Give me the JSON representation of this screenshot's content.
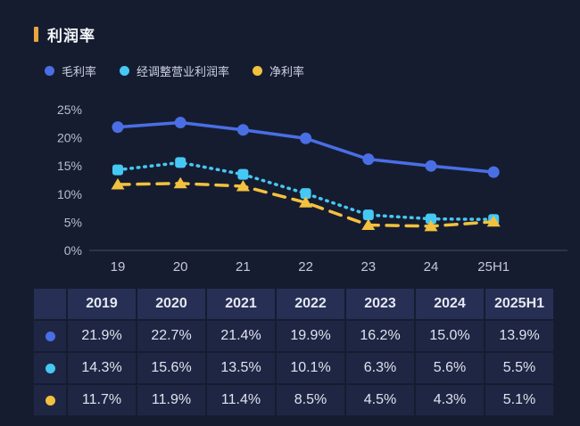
{
  "title": {
    "text": "利润率"
  },
  "colors": {
    "background": "#161C30",
    "accent_bar": "#E9A53E",
    "axis_label": "#B7BECF",
    "axis_line": "#333B52",
    "table_cell_bg": "#1F2644",
    "table_header_bg": "#272F54"
  },
  "legend": [
    {
      "label": "毛利率",
      "color": "#4A6FE4"
    },
    {
      "label": "经调整营业利润率",
      "color": "#45C8F3"
    },
    {
      "label": "净利率",
      "color": "#F2C13E"
    }
  ],
  "chart_data": {
    "type": "line",
    "title": "利润率",
    "xlabel": "",
    "ylabel": "",
    "categories": [
      "19",
      "20",
      "21",
      "22",
      "23",
      "24",
      "25H1"
    ],
    "series": [
      {
        "name": "毛利率",
        "color": "#4A6FE4",
        "line_style": "solid",
        "marker": "circle",
        "values": [
          21.9,
          22.7,
          21.4,
          19.9,
          16.2,
          15.0,
          13.9
        ]
      },
      {
        "name": "经调整营业利润率",
        "color": "#45C8F3",
        "line_style": "dotted",
        "marker": "square",
        "values": [
          14.3,
          15.6,
          13.5,
          10.1,
          6.3,
          5.6,
          5.5
        ]
      },
      {
        "name": "净利率",
        "color": "#F2C13E",
        "line_style": "dashed",
        "marker": "triangle",
        "values": [
          11.7,
          11.9,
          11.4,
          8.5,
          4.5,
          4.3,
          5.1
        ]
      }
    ],
    "ylim": [
      0,
      25
    ],
    "yticks": [
      "25%",
      "20%",
      "15%",
      "10%",
      "5%",
      "0%"
    ],
    "grid": false,
    "legend_position": "top"
  },
  "table": {
    "headers": [
      "2019",
      "2020",
      "2021",
      "2022",
      "2023",
      "2024",
      "2025H1"
    ],
    "rows": [
      {
        "series": "毛利率",
        "values": [
          "21.9%",
          "22.7%",
          "21.4%",
          "19.9%",
          "16.2%",
          "15.0%",
          "13.9%"
        ]
      },
      {
        "series": "经调整营业利润率",
        "values": [
          "14.3%",
          "15.6%",
          "13.5%",
          "10.1%",
          "6.3%",
          "5.6%",
          "5.5%"
        ]
      },
      {
        "series": "净利率",
        "values": [
          "11.7%",
          "11.9%",
          "11.4%",
          "8.5%",
          "4.5%",
          "4.3%",
          "5.1%"
        ]
      }
    ]
  }
}
